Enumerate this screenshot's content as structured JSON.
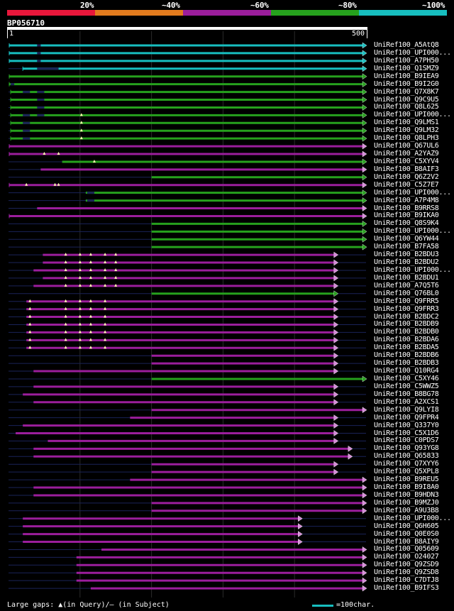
{
  "legend": {
    "labels": [
      "20%",
      "~40%",
      "~60%",
      "~80%",
      "~100%"
    ],
    "colors": [
      "#e8173b",
      "#e27b1e",
      "#9b1e9c",
      "#26a11d",
      "#17bebf"
    ]
  },
  "query": {
    "title": "BP056710",
    "start": "1",
    "end": "500"
  },
  "footer": {
    "gaps_text": "Large gaps: ▲(in Query)/— (in Subject)",
    "scale_text": "=100char."
  },
  "hits": [
    {
      "label": "UniRef100_A5AtQ8",
      "color": "#17bebf",
      "start": 1,
      "end": 500,
      "leftTail": true,
      "arrow": "blue",
      "gaps": [],
      "subjGaps": [
        [
          40,
          45
        ]
      ]
    },
    {
      "label": "UniRef100_UPI000...",
      "color": "#17bebf",
      "start": 1,
      "end": 500,
      "leftTail": true,
      "arrow": "blue",
      "gaps": [],
      "subjGaps": [
        [
          40,
          45
        ]
      ]
    },
    {
      "label": "UniRef100_A7PH50",
      "color": "#17bebf",
      "start": 1,
      "end": 500,
      "leftTail": true,
      "arrow": "blue",
      "gaps": [],
      "subjGaps": [
        [
          40,
          45
        ]
      ]
    },
    {
      "label": "UniRef100_Q1SMZ9",
      "color": "#17bebf",
      "start": 20,
      "end": 500,
      "leftTail": true,
      "arrow": "blue",
      "gaps": [],
      "subjGaps": [
        [
          40,
          70
        ]
      ]
    },
    {
      "label": "UniRef100_B9IEA9",
      "color": "#26a11d",
      "start": 1,
      "end": 500,
      "leftTail": true,
      "arrow": "green",
      "gaps": [],
      "subjGaps": []
    },
    {
      "label": "UniRef100_B9I2G0",
      "color": "#26a11d",
      "start": 1,
      "end": 500,
      "leftTail": true,
      "arrow": "green",
      "gaps": [],
      "subjGaps": [
        [
          3,
          8
        ]
      ]
    },
    {
      "label": "UniRef100_Q7X8K7",
      "color": "#26a11d",
      "start": 3,
      "end": 500,
      "leftTail": true,
      "arrow": "green",
      "gaps": [],
      "subjGaps": [
        [
          20,
          30
        ],
        [
          40,
          50
        ]
      ]
    },
    {
      "label": "UniRef100_Q9C9U5",
      "color": "#26a11d",
      "start": 3,
      "end": 500,
      "leftTail": true,
      "arrow": "green",
      "gaps": [],
      "subjGaps": [
        [
          40,
          50
        ]
      ]
    },
    {
      "label": "UniRef100_Q8L625",
      "color": "#26a11d",
      "start": 3,
      "end": 500,
      "leftTail": true,
      "arrow": "green",
      "gaps": [],
      "subjGaps": [
        [
          40,
          50
        ]
      ]
    },
    {
      "label": "UniRef100_UPI000...",
      "color": "#26a11d",
      "start": 3,
      "end": 500,
      "leftTail": true,
      "arrow": "green",
      "gaps": [
        102
      ],
      "subjGaps": [
        [
          20,
          30
        ],
        [
          40,
          50
        ]
      ]
    },
    {
      "label": "UniRef100_Q9LMS1",
      "color": "#26a11d",
      "start": 3,
      "end": 500,
      "leftTail": true,
      "arrow": "green",
      "gaps": [
        102
      ],
      "subjGaps": [
        [
          20,
          30
        ]
      ]
    },
    {
      "label": "UniRef100_Q9LM32",
      "color": "#26a11d",
      "start": 3,
      "end": 500,
      "leftTail": true,
      "arrow": "green",
      "gaps": [
        102
      ],
      "subjGaps": [
        [
          20,
          30
        ]
      ]
    },
    {
      "label": "UniRef100_Q8LPH3",
      "color": "#26a11d",
      "start": 3,
      "end": 500,
      "leftTail": true,
      "arrow": "green",
      "gaps": [
        102
      ],
      "subjGaps": [
        [
          20,
          30
        ]
      ]
    },
    {
      "label": "UniRef100_Q67UL6",
      "color": "#9b1e9c",
      "start": 1,
      "end": 500,
      "leftTail": true,
      "arrow": "purple",
      "gaps": [],
      "subjGaps": []
    },
    {
      "label": "UniRef100_A2YAZ9",
      "color": "#9b1e9c",
      "start": 1,
      "end": 500,
      "leftTail": true,
      "arrow": "purple",
      "gaps": [
        50,
        70
      ],
      "subjGaps": []
    },
    {
      "label": "UniRef100_C5XYV4",
      "color": "#26a11d",
      "start": 75,
      "end": 500,
      "leftTail": false,
      "arrow": "green",
      "gaps": [
        120
      ],
      "subjGaps": []
    },
    {
      "label": "UniRef100_B8AIF3",
      "color": "#9b1e9c",
      "start": 45,
      "end": 500,
      "leftTail": false,
      "arrow": "purple",
      "gaps": [],
      "subjGaps": []
    },
    {
      "label": "UniRef100_Q6Z2V2",
      "color": "#26a11d",
      "start": 200,
      "end": 500,
      "leftTail": false,
      "arrow": "green",
      "gaps": [],
      "subjGaps": []
    },
    {
      "label": "UniRef100_C5Z7E7",
      "color": "#9b1e9c",
      "start": 1,
      "end": 500,
      "leftTail": true,
      "arrow": "purple",
      "gaps": [
        25,
        65,
        70
      ],
      "subjGaps": []
    },
    {
      "label": "UniRef100_UPI000...",
      "color": "#26a11d",
      "start": 108,
      "end": 500,
      "leftTail": false,
      "arrow": "green",
      "gaps": [],
      "subjGaps": [
        [
          110,
          120
        ]
      ]
    },
    {
      "label": "UniRef100_A7P4M8",
      "color": "#26a11d",
      "start": 108,
      "end": 500,
      "leftTail": false,
      "arrow": "green",
      "gaps": [],
      "subjGaps": [
        [
          110,
          120
        ]
      ]
    },
    {
      "label": "UniRef100_B9RRS8",
      "color": "#9b1e9c",
      "start": 40,
      "end": 500,
      "leftTail": false,
      "arrow": "purple",
      "gaps": [],
      "subjGaps": []
    },
    {
      "label": "UniRef100_B9IKA0",
      "color": "#9b1e9c",
      "start": 1,
      "end": 500,
      "leftTail": true,
      "arrow": "purple",
      "gaps": [],
      "subjGaps": []
    },
    {
      "label": "UniRef100_Q8S9K4",
      "color": "#26a11d",
      "start": 200,
      "end": 500,
      "leftTail": false,
      "arrow": "green",
      "gaps": [],
      "subjGaps": []
    },
    {
      "label": "UniRef100_UPI000...",
      "color": "#26a11d",
      "start": 200,
      "end": 500,
      "leftTail": false,
      "arrow": "green",
      "gaps": [],
      "subjGaps": []
    },
    {
      "label": "UniRef100_Q6YW44",
      "color": "#26a11d",
      "start": 200,
      "end": 500,
      "leftTail": false,
      "arrow": "green",
      "gaps": [],
      "subjGaps": []
    },
    {
      "label": "UniRef100_B7FA58",
      "color": "#26a11d",
      "start": 200,
      "end": 500,
      "leftTail": false,
      "arrow": "green",
      "gaps": [],
      "subjGaps": []
    },
    {
      "label": "UniRef100_B2BDU3",
      "color": "#9b1e9c",
      "start": 48,
      "end": 460,
      "leftTail": false,
      "arrow": "purple",
      "gaps": [],
      "subjGaps": []
    },
    {
      "label": "UniRef100_B2BDU2",
      "color": "#9b1e9c",
      "start": 48,
      "end": 460,
      "leftTail": false,
      "arrow": "purple",
      "gaps": [],
      "subjGaps": []
    },
    {
      "label": "UniRef100_UPI000...",
      "color": "#9b1e9c",
      "start": 35,
      "end": 460,
      "leftTail": false,
      "arrow": "purple",
      "gaps": [],
      "subjGaps": []
    },
    {
      "label": "UniRef100_B2BDU1",
      "color": "#9b1e9c",
      "start": 48,
      "end": 460,
      "leftTail": false,
      "arrow": "purple",
      "gaps": [],
      "subjGaps": []
    },
    {
      "label": "UniRef100_A7Q5T6",
      "color": "#9b1e9c",
      "start": 35,
      "end": 460,
      "leftTail": false,
      "arrow": "purple",
      "gaps": [],
      "subjGaps": []
    },
    {
      "label": "UniRef100_Q76BL0",
      "color": "#26a11d",
      "start": 200,
      "end": 460,
      "leftTail": false,
      "arrow": "green",
      "gaps": [],
      "subjGaps": []
    },
    {
      "label": "UniRef100_Q9FRR5",
      "color": "#9b1e9c",
      "start": 25,
      "end": 460,
      "leftTail": false,
      "arrow": "purple",
      "gaps": [],
      "subjGaps": []
    },
    {
      "label": "UniRef100_Q9FRR3",
      "color": "#9b1e9c",
      "start": 25,
      "end": 460,
      "leftTail": false,
      "arrow": "purple",
      "gaps": [],
      "subjGaps": []
    },
    {
      "label": "UniRef100_B2BDC2",
      "color": "#9b1e9c",
      "start": 25,
      "end": 460,
      "leftTail": false,
      "arrow": "purple",
      "gaps": [],
      "subjGaps": []
    },
    {
      "label": "UniRef100_B2BDB9",
      "color": "#9b1e9c",
      "start": 25,
      "end": 460,
      "leftTail": false,
      "arrow": "purple",
      "gaps": [],
      "subjGaps": []
    },
    {
      "label": "UniRef100_B2BDB0",
      "color": "#9b1e9c",
      "start": 25,
      "end": 460,
      "leftTail": false,
      "arrow": "purple",
      "gaps": [],
      "subjGaps": []
    },
    {
      "label": "UniRef100_B2BDA6",
      "color": "#9b1e9c",
      "start": 25,
      "end": 460,
      "leftTail": false,
      "arrow": "purple",
      "gaps": [],
      "subjGaps": []
    },
    {
      "label": "UniRef100_B2BDA5",
      "color": "#9b1e9c",
      "start": 25,
      "end": 460,
      "leftTail": false,
      "arrow": "purple",
      "gaps": [],
      "subjGaps": []
    },
    {
      "label": "UniRef100_B2BDB6",
      "color": "#9b1e9c",
      "start": 200,
      "end": 460,
      "leftTail": false,
      "arrow": "purple",
      "gaps": [],
      "subjGaps": []
    },
    {
      "label": "UniRef100_B2BDB3",
      "color": "#9b1e9c",
      "start": 200,
      "end": 460,
      "leftTail": false,
      "arrow": "purple",
      "gaps": [],
      "subjGaps": []
    },
    {
      "label": "UniRef100_Q10RG4",
      "color": "#9b1e9c",
      "start": 35,
      "end": 460,
      "leftTail": false,
      "arrow": "purple",
      "gaps": [],
      "subjGaps": []
    },
    {
      "label": "UniRef100_C5XY46",
      "color": "#26a11d",
      "start": 200,
      "end": 500,
      "leftTail": false,
      "arrow": "green",
      "gaps": [],
      "subjGaps": []
    },
    {
      "label": "UniRef100_C5WWZ5",
      "color": "#9b1e9c",
      "start": 35,
      "end": 460,
      "leftTail": false,
      "arrow": "purple",
      "gaps": [],
      "subjGaps": []
    },
    {
      "label": "UniRef100_B8BG78",
      "color": "#9b1e9c",
      "start": 20,
      "end": 460,
      "leftTail": false,
      "arrow": "purple",
      "gaps": [],
      "subjGaps": []
    },
    {
      "label": "UniRef100_A2XCS1",
      "color": "#9b1e9c",
      "start": 35,
      "end": 460,
      "leftTail": false,
      "arrow": "purple",
      "gaps": [],
      "subjGaps": []
    },
    {
      "label": "UniRef100_Q9LYI8",
      "color": "#9b1e9c",
      "start": 200,
      "end": 500,
      "leftTail": false,
      "arrow": "purple",
      "gaps": [],
      "subjGaps": []
    },
    {
      "label": "UniRef100_Q9FPR4",
      "color": "#9b1e9c",
      "start": 170,
      "end": 460,
      "leftTail": false,
      "arrow": "purple",
      "gaps": [],
      "subjGaps": []
    },
    {
      "label": "UniRef100_Q337Y0",
      "color": "#9b1e9c",
      "start": 20,
      "end": 460,
      "leftTail": false,
      "arrow": "purple",
      "gaps": [],
      "subjGaps": []
    },
    {
      "label": "UniRef100_C5X1D6",
      "color": "#9b1e9c",
      "start": 10,
      "end": 460,
      "leftTail": false,
      "arrow": "purple",
      "gaps": [],
      "subjGaps": []
    },
    {
      "label": "UniRef100_C0PDS7",
      "color": "#9b1e9c",
      "start": 55,
      "end": 460,
      "leftTail": false,
      "arrow": "purple",
      "gaps": [],
      "subjGaps": []
    },
    {
      "label": "UniRef100_Q93YG8",
      "color": "#9b1e9c",
      "start": 35,
      "end": 480,
      "leftTail": false,
      "arrow": "purple",
      "gaps": [],
      "subjGaps": []
    },
    {
      "label": "UniRef100_Q65833",
      "color": "#9b1e9c",
      "start": 35,
      "end": 480,
      "leftTail": false,
      "arrow": "purple",
      "gaps": [],
      "subjGaps": []
    },
    {
      "label": "UniRef100_Q7XYY6",
      "color": "#9b1e9c",
      "start": 200,
      "end": 460,
      "leftTail": false,
      "arrow": "purple",
      "gaps": [],
      "subjGaps": []
    },
    {
      "label": "UniRef100_Q5XPL8",
      "color": "#9b1e9c",
      "start": 200,
      "end": 460,
      "leftTail": false,
      "arrow": "purple",
      "gaps": [],
      "subjGaps": []
    },
    {
      "label": "UniRef100_B9REU5",
      "color": "#9b1e9c",
      "start": 170,
      "end": 500,
      "leftTail": false,
      "arrow": "purple",
      "gaps": [],
      "subjGaps": []
    },
    {
      "label": "UniRef100_B9I8A0",
      "color": "#9b1e9c",
      "start": 35,
      "end": 500,
      "leftTail": false,
      "arrow": "purple",
      "gaps": [],
      "subjGaps": []
    },
    {
      "label": "UniRef100_B9HDN3",
      "color": "#9b1e9c",
      "start": 35,
      "end": 500,
      "leftTail": false,
      "arrow": "purple",
      "gaps": [],
      "subjGaps": []
    },
    {
      "label": "UniRef100_B9MZJ0",
      "color": "#9b1e9c",
      "start": 200,
      "end": 500,
      "leftTail": false,
      "arrow": "purple",
      "gaps": [],
      "subjGaps": []
    },
    {
      "label": "UniRef100_A9U3B8",
      "color": "#9b1e9c",
      "start": 200,
      "end": 500,
      "leftTail": false,
      "arrow": "purple",
      "gaps": [],
      "subjGaps": []
    },
    {
      "label": "UniRef100_UPI000...",
      "color": "#9b1e9c",
      "start": 20,
      "end": 410,
      "leftTail": false,
      "arrow": "purple",
      "gaps": [],
      "subjGaps": []
    },
    {
      "label": "UniRef100_Q6H605",
      "color": "#9b1e9c",
      "start": 20,
      "end": 410,
      "leftTail": false,
      "arrow": "purple",
      "gaps": [],
      "subjGaps": []
    },
    {
      "label": "UniRef100_Q0E0S0",
      "color": "#9b1e9c",
      "start": 20,
      "end": 410,
      "leftTail": false,
      "arrow": "purple",
      "gaps": [],
      "subjGaps": []
    },
    {
      "label": "UniRef100_B8AIY9",
      "color": "#9b1e9c",
      "start": 20,
      "end": 410,
      "leftTail": false,
      "arrow": "purple",
      "gaps": [],
      "subjGaps": []
    },
    {
      "label": "UniRef100_Q05609",
      "color": "#9b1e9c",
      "start": 130,
      "end": 500,
      "leftTail": false,
      "arrow": "purple",
      "gaps": [],
      "subjGaps": []
    },
    {
      "label": "UniRef100_O24027",
      "color": "#9b1e9c",
      "start": 95,
      "end": 500,
      "leftTail": false,
      "arrow": "purple",
      "gaps": [],
      "subjGaps": []
    },
    {
      "label": "UniRef100_Q9ZSD9",
      "color": "#9b1e9c",
      "start": 95,
      "end": 500,
      "leftTail": false,
      "arrow": "purple",
      "gaps": [],
      "subjGaps": []
    },
    {
      "label": "UniRef100_Q9ZSD8",
      "color": "#9b1e9c",
      "start": 95,
      "end": 500,
      "leftTail": false,
      "arrow": "purple",
      "gaps": [],
      "subjGaps": []
    },
    {
      "label": "UniRef100_C7DTJ8",
      "color": "#9b1e9c",
      "start": 95,
      "end": 500,
      "leftTail": false,
      "arrow": "purple",
      "gaps": [],
      "subjGaps": []
    },
    {
      "label": "UniRef100_B9IFS3",
      "color": "#9b1e9c",
      "start": 115,
      "end": 500,
      "leftTail": false,
      "arrow": "purple",
      "gaps": [],
      "subjGaps": []
    }
  ],
  "gap_markers": {
    "hits_27_to_31": [
      80,
      100,
      115,
      135,
      150
    ],
    "hits_33_to_39": [
      30,
      80,
      100,
      115,
      135
    ]
  }
}
